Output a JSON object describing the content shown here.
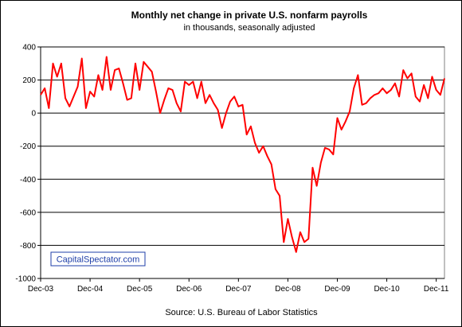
{
  "chart_data": {
    "type": "line",
    "title": "Monthly net change in private U.S. nonfarm payrolls",
    "subtitle": "in thousands, seasonally adjusted",
    "xlabel": "",
    "ylabel": "",
    "source": "Source: U.S. Bureau of Labor Statistics",
    "watermark": "CapitalSpectator.com",
    "ylim": [
      -1000,
      400
    ],
    "yticks": [
      400,
      200,
      0,
      -200,
      -400,
      -600,
      -800,
      -1000
    ],
    "xticks": [
      "Dec-03",
      "Dec-04",
      "Dec-05",
      "Dec-06",
      "Dec-07",
      "Dec-08",
      "Dec-09",
      "Dec-10",
      "Dec-11"
    ],
    "grid": true,
    "colors": {
      "line": "#ff0000",
      "plot_background": "#ffffff",
      "grid": "#000000",
      "watermark": "#1f3fa8"
    },
    "series": [
      {
        "values": [
          110,
          150,
          30,
          300,
          220,
          300,
          90,
          40,
          100,
          160,
          330,
          30,
          130,
          100,
          230,
          140,
          340,
          140,
          260,
          270,
          180,
          80,
          90,
          300,
          140,
          310,
          280,
          250,
          130,
          0,
          80,
          150,
          140,
          60,
          10,
          190,
          170,
          190,
          90,
          190,
          60,
          110,
          60,
          20,
          -90,
          0,
          70,
          100,
          40,
          50,
          -130,
          -80,
          -180,
          -240,
          -200,
          -260,
          -310,
          -460,
          -500,
          -780,
          -640,
          -750,
          -840,
          -720,
          -780,
          -760,
          -330,
          -440,
          -300,
          -210,
          -220,
          -250,
          -30,
          -100,
          -50,
          10,
          150,
          230,
          50,
          60,
          90,
          110,
          120,
          150,
          120,
          140,
          180,
          100,
          260,
          210,
          240,
          100,
          70,
          170,
          90,
          220,
          140,
          110,
          210
        ]
      }
    ]
  }
}
